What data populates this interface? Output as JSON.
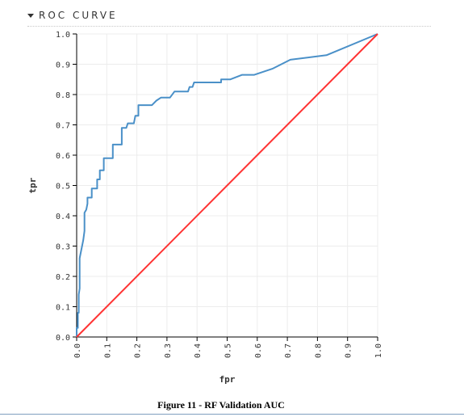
{
  "section": {
    "title": "ROC CURVE",
    "toggle_icon": "caret-down-icon"
  },
  "figure_caption": "Figure 11 - RF Validation AUC",
  "chart_data": {
    "type": "line",
    "xlabel": "fpr",
    "ylabel": "tpr",
    "xlim": [
      0,
      1
    ],
    "ylim": [
      0,
      1
    ],
    "grid": true,
    "x_ticks": [
      "0.0",
      "0.1",
      "0.2",
      "0.3",
      "0.4",
      "0.5",
      "0.6",
      "0.7",
      "0.8",
      "0.9",
      "1.0"
    ],
    "y_ticks": [
      "0.0",
      "0.1",
      "0.2",
      "0.3",
      "0.4",
      "0.5",
      "0.6",
      "0.7",
      "0.8",
      "0.9",
      "1.0"
    ],
    "series": [
      {
        "color": "#4a90c8",
        "points": [
          [
            0.0,
            0.0
          ],
          [
            0.0,
            0.03
          ],
          [
            0.004,
            0.03
          ],
          [
            0.004,
            0.08
          ],
          [
            0.007,
            0.08
          ],
          [
            0.007,
            0.14
          ],
          [
            0.01,
            0.16
          ],
          [
            0.01,
            0.26
          ],
          [
            0.014,
            0.28
          ],
          [
            0.018,
            0.3
          ],
          [
            0.022,
            0.32
          ],
          [
            0.026,
            0.35
          ],
          [
            0.026,
            0.41
          ],
          [
            0.032,
            0.42
          ],
          [
            0.036,
            0.44
          ],
          [
            0.036,
            0.46
          ],
          [
            0.05,
            0.46
          ],
          [
            0.05,
            0.49
          ],
          [
            0.068,
            0.49
          ],
          [
            0.068,
            0.52
          ],
          [
            0.077,
            0.52
          ],
          [
            0.077,
            0.55
          ],
          [
            0.09,
            0.55
          ],
          [
            0.09,
            0.59
          ],
          [
            0.12,
            0.59
          ],
          [
            0.12,
            0.635
          ],
          [
            0.15,
            0.635
          ],
          [
            0.15,
            0.69
          ],
          [
            0.165,
            0.69
          ],
          [
            0.17,
            0.705
          ],
          [
            0.19,
            0.705
          ],
          [
            0.195,
            0.73
          ],
          [
            0.205,
            0.73
          ],
          [
            0.205,
            0.765
          ],
          [
            0.25,
            0.765
          ],
          [
            0.265,
            0.78
          ],
          [
            0.28,
            0.79
          ],
          [
            0.31,
            0.79
          ],
          [
            0.325,
            0.81
          ],
          [
            0.37,
            0.81
          ],
          [
            0.375,
            0.825
          ],
          [
            0.385,
            0.825
          ],
          [
            0.39,
            0.84
          ],
          [
            0.48,
            0.84
          ],
          [
            0.48,
            0.85
          ],
          [
            0.51,
            0.85
          ],
          [
            0.55,
            0.865
          ],
          [
            0.59,
            0.865
          ],
          [
            0.65,
            0.885
          ],
          [
            0.71,
            0.915
          ],
          [
            0.83,
            0.93
          ],
          [
            1.0,
            1.0
          ]
        ]
      },
      {
        "color": "#ff3333",
        "points": [
          [
            0.0,
            0.0
          ],
          [
            1.0,
            1.0
          ]
        ]
      }
    ]
  }
}
